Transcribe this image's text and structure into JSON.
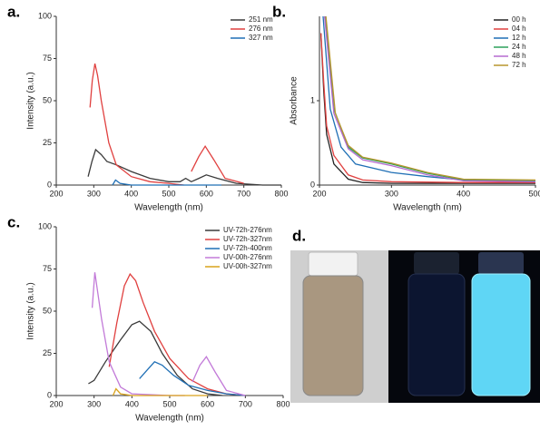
{
  "chart_data": [
    {
      "type": "line",
      "panel_label": "a.",
      "x_label": "Wavelength (nm)",
      "y_label": "Intensity (a.u.)",
      "xlim": [
        200,
        800
      ],
      "xticks": [
        200,
        300,
        400,
        500,
        600,
        700,
        800
      ],
      "ylim": [
        0,
        100
      ],
      "yticks": [
        0,
        25,
        50,
        75,
        100
      ],
      "legend": "upper right",
      "series": [
        {
          "name": "251 nm",
          "color": "#3a3a3a",
          "x": [
            285,
            295,
            305,
            320,
            335,
            360,
            400,
            450,
            500,
            530,
            545,
            560,
            580,
            600,
            630,
            680,
            750,
            800
          ],
          "values": [
            5,
            14,
            21,
            18,
            14,
            12,
            8,
            4,
            2,
            2,
            4,
            2,
            4,
            6,
            4,
            1,
            0,
            0
          ]
        },
        {
          "name": "276 nm",
          "color": "#e0403f",
          "x": [
            290,
            296,
            303,
            310,
            320,
            340,
            360,
            400,
            450,
            500,
            540,
            555,
            560,
            580,
            597,
            620,
            650,
            700
          ],
          "values": [
            46,
            62,
            72,
            65,
            50,
            25,
            12,
            5,
            2,
            1,
            0,
            null,
            8,
            17,
            23,
            15,
            4,
            1
          ]
        },
        {
          "name": "327 nm",
          "color": "#1f6fb5",
          "x": [
            350,
            358,
            370,
            400,
            500,
            640
          ],
          "values": [
            0,
            3,
            1,
            0,
            0,
            0
          ]
        }
      ]
    },
    {
      "type": "line",
      "panel_label": "b.",
      "x_label": "Wavelength (nm)",
      "y_label": "Absorbance",
      "xlim": [
        200,
        500
      ],
      "xticks": [
        200,
        300,
        400,
        500
      ],
      "ylim": [
        0,
        2
      ],
      "yticks": [
        0,
        1
      ],
      "legend": "upper right",
      "series": [
        {
          "name": "00 h",
          "color": "#222222",
          "x": [
            202,
            206,
            210,
            220,
            240,
            260,
            300,
            400,
            500
          ],
          "values": [
            1.8,
            1.1,
            0.6,
            0.25,
            0.07,
            0.03,
            0.02,
            0.02,
            0.02
          ]
        },
        {
          "name": "04 h",
          "color": "#e0403f",
          "x": [
            202,
            206,
            210,
            220,
            240,
            260,
            300,
            400,
            500
          ],
          "values": [
            1.8,
            1.2,
            0.7,
            0.35,
            0.12,
            0.06,
            0.04,
            0.03,
            0.03
          ]
        },
        {
          "name": "12 h",
          "color": "#1f6fb5",
          "x": [
            205,
            215,
            230,
            250,
            300,
            350,
            400,
            500
          ],
          "values": [
            2.0,
            0.9,
            0.45,
            0.25,
            0.15,
            0.1,
            0.06,
            0.05
          ]
        },
        {
          "name": "24 h",
          "color": "#2ca05a",
          "x": [
            208,
            220,
            240,
            260,
            300,
            350,
            400,
            500
          ],
          "values": [
            2.0,
            0.9,
            0.45,
            0.32,
            0.25,
            0.14,
            0.06,
            0.05
          ]
        },
        {
          "name": "48 h",
          "color": "#b56ad0",
          "x": [
            207,
            220,
            240,
            260,
            300,
            350,
            400,
            500
          ],
          "values": [
            2.0,
            0.85,
            0.43,
            0.3,
            0.23,
            0.12,
            0.05,
            0.04
          ]
        },
        {
          "name": "72 h",
          "color": "#b8962e",
          "x": [
            209,
            222,
            240,
            260,
            300,
            350,
            400,
            500
          ],
          "values": [
            2.0,
            0.85,
            0.47,
            0.33,
            0.26,
            0.15,
            0.07,
            0.06
          ]
        }
      ]
    },
    {
      "type": "line",
      "panel_label": "c.",
      "x_label": "Wavelength (nm)",
      "y_label": "Intensity (a.u.)",
      "xlim": [
        200,
        800
      ],
      "xticks": [
        200,
        300,
        400,
        500,
        600,
        700,
        800
      ],
      "ylim": [
        0,
        100
      ],
      "yticks": [
        0,
        25,
        50,
        75,
        100
      ],
      "legend": "upper right",
      "series": [
        {
          "name": "UV-72h-276nm",
          "color": "#3a3a3a",
          "x": [
            285,
            300,
            330,
            370,
            400,
            420,
            450,
            480,
            520,
            560,
            600,
            640
          ],
          "values": [
            7,
            9,
            20,
            33,
            42,
            44,
            38,
            25,
            12,
            4,
            1,
            0
          ]
        },
        {
          "name": "UV-72h-327nm",
          "color": "#e0403f",
          "x": [
            340,
            360,
            380,
            395,
            410,
            430,
            460,
            500,
            550,
            600,
            650,
            700
          ],
          "values": [
            17,
            43,
            65,
            72,
            68,
            55,
            38,
            22,
            10,
            4,
            1,
            0
          ]
        },
        {
          "name": "UV-72h-400nm",
          "color": "#1f6fb5",
          "x": [
            420,
            440,
            460,
            480,
            510,
            550,
            600,
            650,
            700
          ],
          "values": [
            10,
            15,
            20,
            18,
            12,
            6,
            3,
            1,
            0
          ]
        },
        {
          "name": "UV-00h-276nm",
          "color": "#c27ad8",
          "x": [
            295,
            302,
            320,
            340,
            370,
            400,
            500,
            540,
            550,
            560,
            580,
            597,
            620,
            650,
            700
          ],
          "values": [
            52,
            73,
            45,
            20,
            5,
            1,
            0,
            0,
            null,
            8,
            18,
            23,
            14,
            3,
            0
          ]
        },
        {
          "name": "UV-00h-327nm",
          "color": "#d9a21b",
          "x": [
            350,
            358,
            370,
            400,
            500,
            600
          ],
          "values": [
            0,
            4,
            1,
            0,
            0,
            0
          ]
        }
      ]
    }
  ],
  "photo": {
    "panel_label": "d."
  }
}
